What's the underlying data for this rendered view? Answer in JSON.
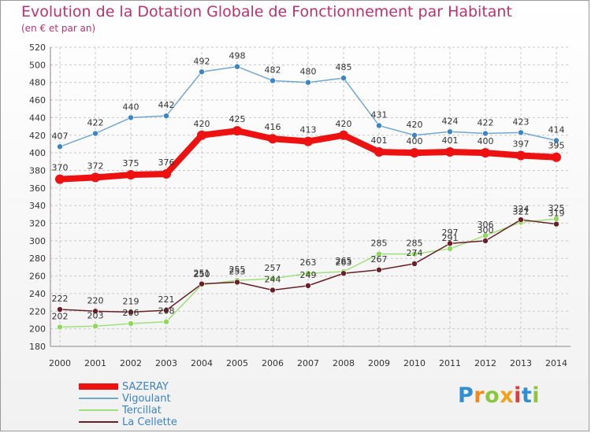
{
  "colors": {
    "title": "#c0306e",
    "grid": "#c8c8c8",
    "axis": "#888888",
    "axisRed": "#e03030"
  },
  "chart_data": {
    "type": "line",
    "title": "Evolution de la Dotation Globale de Fonctionnement par Habitant",
    "subtitle": "(en € et par an)",
    "xlabel": "",
    "ylabel": "",
    "categories": [
      "2000",
      "2001",
      "2002",
      "2003",
      "2004",
      "2005",
      "2006",
      "2007",
      "2008",
      "2009",
      "2010",
      "2011",
      "2012",
      "2013",
      "2014"
    ],
    "ylim": [
      180,
      520
    ],
    "yticks": [
      180,
      200,
      220,
      240,
      260,
      280,
      300,
      320,
      340,
      360,
      380,
      400,
      420,
      440,
      460,
      480,
      500,
      520
    ],
    "grid": true,
    "legend_position": "bottom-left",
    "series": [
      {
        "name": "SAZERAY",
        "color": "#ee1111",
        "dot": "#ee1111",
        "width": 8,
        "dotR": 6,
        "values": [
          370,
          372,
          375,
          376,
          420,
          425,
          416,
          413,
          420,
          401,
          400,
          401,
          400,
          397,
          395
        ]
      },
      {
        "name": "Vigoulant",
        "color": "#6fa8d8",
        "dot": "#3c84c4",
        "width": 1.5,
        "dotR": 3.5,
        "values": [
          407,
          422,
          440,
          442,
          492,
          498,
          482,
          480,
          485,
          431,
          420,
          424,
          422,
          423,
          414
        ]
      },
      {
        "name": "Tercillat",
        "color": "#9ee07a",
        "dot": "#8ed85c",
        "width": 1.5,
        "dotR": 3.5,
        "values": [
          202,
          203,
          206,
          208,
          250,
          255,
          257,
          263,
          265,
          285,
          285,
          291,
          306,
          321,
          325
        ]
      },
      {
        "name": "La Cellette",
        "color": "#6b1e24",
        "dot": "#6b1e24",
        "width": 1.5,
        "dotR": 3.5,
        "values": [
          222,
          220,
          219,
          221,
          251,
          253,
          244,
          249,
          263,
          267,
          274,
          297,
          300,
          324,
          319
        ]
      }
    ]
  },
  "logo": {
    "letters": [
      {
        "ch": "P",
        "color": "#2f8fd6"
      },
      {
        "ch": "r",
        "color": "#f08a1c"
      },
      {
        "ch": "o",
        "color": "#8cc63e"
      },
      {
        "ch": "x",
        "color": "#f0a21c"
      },
      {
        "ch": "i",
        "color": "#e23c3c"
      },
      {
        "ch": "t",
        "color": "#2f8fd6"
      },
      {
        "ch": "i",
        "color": "#8cc63e"
      }
    ]
  }
}
